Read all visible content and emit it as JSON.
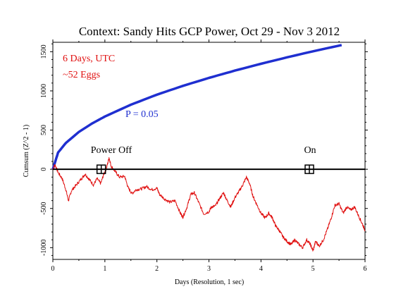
{
  "chart_data": {
    "type": "line",
    "title": "Context: Sandy Hits GCP Power, Oct 29 - Nov 3 2012",
    "xlabel": "Days (Resolution, 1 sec)",
    "ylabel": "Cumsum (Z^2 - 1)",
    "xlim": [
      0,
      6
    ],
    "ylim": [
      -1150,
      1620
    ],
    "x_ticks": [
      "0",
      "1",
      "2",
      "3",
      "4",
      "5",
      "6"
    ],
    "y_ticks": [
      "-1000",
      "-500",
      "0",
      "500",
      "1000",
      "1500"
    ],
    "y_tick_values": [
      -1000,
      -500,
      0,
      500,
      1000,
      1500
    ],
    "annotations": {
      "days": "6 Days, UTC",
      "eggs": "~52 Eggs",
      "p_label": "P = 0.05",
      "power_off": "Power Off",
      "on": "On"
    },
    "markers": [
      {
        "label": "Power Off",
        "x": 0.93,
        "y": 0
      },
      {
        "label": "On",
        "x": 4.93,
        "y": 0
      }
    ],
    "series": [
      {
        "role": "p05_envelope",
        "color": "#1f2fd0",
        "points": [
          [
            0,
            0
          ],
          [
            0.1,
            213
          ],
          [
            0.25,
            336
          ],
          [
            0.5,
            476
          ],
          [
            0.75,
            583
          ],
          [
            1,
            673
          ],
          [
            1.5,
            824
          ],
          [
            2,
            952
          ],
          [
            2.5,
            1064
          ],
          [
            3,
            1166
          ],
          [
            3.5,
            1259
          ],
          [
            4,
            1346
          ],
          [
            4.5,
            1428
          ],
          [
            5,
            1505
          ],
          [
            5.55,
            1585
          ]
        ]
      },
      {
        "role": "cumulative_deviation",
        "color": "#e01010",
        "points": [
          [
            0,
            0
          ],
          [
            0.04,
            60
          ],
          [
            0.1,
            -40
          ],
          [
            0.18,
            -120
          ],
          [
            0.25,
            -260
          ],
          [
            0.3,
            -400
          ],
          [
            0.36,
            -270
          ],
          [
            0.45,
            -200
          ],
          [
            0.55,
            -120
          ],
          [
            0.62,
            -60
          ],
          [
            0.7,
            -130
          ],
          [
            0.78,
            -200
          ],
          [
            0.85,
            -120
          ],
          [
            0.92,
            -180
          ],
          [
            0.98,
            -60
          ],
          [
            1.03,
            10
          ],
          [
            1.08,
            150
          ],
          [
            1.12,
            40
          ],
          [
            1.2,
            -30
          ],
          [
            1.28,
            -100
          ],
          [
            1.38,
            -90
          ],
          [
            1.45,
            -240
          ],
          [
            1.52,
            -310
          ],
          [
            1.6,
            -260
          ],
          [
            1.7,
            -250
          ],
          [
            1.8,
            -220
          ],
          [
            1.9,
            -260
          ],
          [
            2.0,
            -240
          ],
          [
            2.05,
            -320
          ],
          [
            2.15,
            -380
          ],
          [
            2.25,
            -420
          ],
          [
            2.35,
            -400
          ],
          [
            2.45,
            -560
          ],
          [
            2.5,
            -610
          ],
          [
            2.58,
            -480
          ],
          [
            2.65,
            -320
          ],
          [
            2.72,
            -300
          ],
          [
            2.8,
            -420
          ],
          [
            2.9,
            -570
          ],
          [
            3.0,
            -540
          ],
          [
            3.05,
            -480
          ],
          [
            3.12,
            -470
          ],
          [
            3.2,
            -380
          ],
          [
            3.28,
            -300
          ],
          [
            3.35,
            -400
          ],
          [
            3.42,
            -480
          ],
          [
            3.5,
            -360
          ],
          [
            3.58,
            -280
          ],
          [
            3.65,
            -200
          ],
          [
            3.72,
            -100
          ],
          [
            3.78,
            -180
          ],
          [
            3.85,
            -350
          ],
          [
            3.92,
            -450
          ],
          [
            4.0,
            -560
          ],
          [
            4.08,
            -620
          ],
          [
            4.15,
            -560
          ],
          [
            4.22,
            -620
          ],
          [
            4.28,
            -720
          ],
          [
            4.35,
            -780
          ],
          [
            4.42,
            -860
          ],
          [
            4.5,
            -920
          ],
          [
            4.58,
            -960
          ],
          [
            4.65,
            -900
          ],
          [
            4.72,
            -950
          ],
          [
            4.8,
            -1000
          ],
          [
            4.88,
            -900
          ],
          [
            4.95,
            -960
          ],
          [
            5.0,
            -1040
          ],
          [
            5.05,
            -920
          ],
          [
            5.12,
            -980
          ],
          [
            5.2,
            -900
          ],
          [
            5.28,
            -760
          ],
          [
            5.35,
            -620
          ],
          [
            5.42,
            -460
          ],
          [
            5.5,
            -440
          ],
          [
            5.58,
            -560
          ],
          [
            5.65,
            -480
          ],
          [
            5.72,
            -520
          ],
          [
            5.8,
            -480
          ],
          [
            5.88,
            -600
          ],
          [
            5.95,
            -700
          ],
          [
            6.0,
            -780
          ]
        ]
      }
    ]
  }
}
